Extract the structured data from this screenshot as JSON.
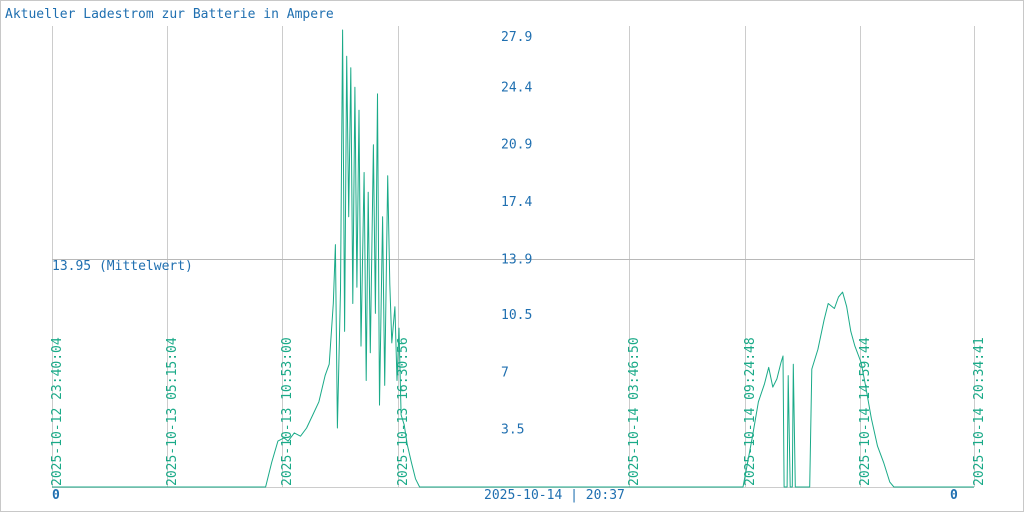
{
  "chart_data": {
    "type": "line",
    "title": "Aktueller Ladestrom zur Batterie in Ampere",
    "mean_label": "13.95 (Mittelwert)",
    "mean_value": 13.95,
    "ylim": [
      0,
      27.9
    ],
    "y_ticks": [
      {
        "value": 27.9,
        "label": "27.9"
      },
      {
        "value": 24.4,
        "label": "24.4"
      },
      {
        "value": 20.9,
        "label": "20.9"
      },
      {
        "value": 17.4,
        "label": "17.4"
      },
      {
        "value": 13.9,
        "label": "13.9"
      },
      {
        "value": 10.5,
        "label": "10.5"
      },
      {
        "value": 7,
        "label": "7"
      },
      {
        "value": 3.5,
        "label": "3.5"
      }
    ],
    "x_range_hours": [
      0,
      44.9
    ],
    "x_ticks": [
      {
        "hours": 0.0,
        "label": "2025-10-12 23:40:04"
      },
      {
        "hours": 5.58,
        "label": "2025-10-13 05:15:04"
      },
      {
        "hours": 11.21,
        "label": "2025-10-13 10:53:00"
      },
      {
        "hours": 16.85,
        "label": "2025-10-13 16:30:56"
      },
      {
        "hours": 28.11,
        "label": "2025-10-14 03:46:50"
      },
      {
        "hours": 33.75,
        "label": "2025-10-14 09:24:48"
      },
      {
        "hours": 39.33,
        "label": "2025-10-14 14:59:44"
      },
      {
        "hours": 44.91,
        "label": "2025-10-14 20:34:41"
      }
    ],
    "bottom_left_label": "0",
    "bottom_right_label": "0",
    "bottom_center_label": "2025-10-14 | 20:37",
    "colors": {
      "title": "#1f6fb0",
      "axis_text": "#1f6fb0",
      "line": "#1aaa88",
      "grid": "#cccccc"
    },
    "series": [
      {
        "values": [
          [
            0,
            0
          ],
          [
            10.4,
            0
          ],
          [
            10.7,
            1.5
          ],
          [
            11.0,
            2.8
          ],
          [
            11.3,
            3.0
          ],
          [
            11.5,
            2.8
          ],
          [
            11.8,
            3.3
          ],
          [
            12.1,
            3.1
          ],
          [
            12.4,
            3.6
          ],
          [
            12.7,
            4.4
          ],
          [
            13.0,
            5.2
          ],
          [
            13.3,
            6.8
          ],
          [
            13.5,
            7.5
          ],
          [
            13.7,
            11.2
          ],
          [
            13.8,
            14.8
          ],
          [
            13.9,
            3.6
          ],
          [
            14.05,
            12.0
          ],
          [
            14.15,
            27.9
          ],
          [
            14.25,
            9.5
          ],
          [
            14.35,
            26.3
          ],
          [
            14.45,
            16.5
          ],
          [
            14.55,
            25.6
          ],
          [
            14.65,
            11.2
          ],
          [
            14.75,
            24.4
          ],
          [
            14.85,
            12.2
          ],
          [
            14.95,
            23.0
          ],
          [
            15.05,
            8.6
          ],
          [
            15.2,
            19.2
          ],
          [
            15.3,
            6.5
          ],
          [
            15.4,
            18.0
          ],
          [
            15.5,
            8.2
          ],
          [
            15.65,
            20.9
          ],
          [
            15.75,
            10.6
          ],
          [
            15.85,
            24.0
          ],
          [
            15.95,
            5.0
          ],
          [
            16.1,
            16.5
          ],
          [
            16.2,
            6.2
          ],
          [
            16.35,
            19.0
          ],
          [
            16.45,
            12.4
          ],
          [
            16.55,
            8.8
          ],
          [
            16.7,
            11.0
          ],
          [
            16.8,
            6.5
          ],
          [
            16.9,
            9.7
          ],
          [
            17.0,
            4.4
          ],
          [
            17.15,
            3.8
          ],
          [
            17.3,
            2.6
          ],
          [
            17.5,
            1.5
          ],
          [
            17.7,
            0.5
          ],
          [
            17.9,
            0
          ],
          [
            33.65,
            0
          ],
          [
            33.8,
            1.0
          ],
          [
            34.1,
            3.0
          ],
          [
            34.4,
            5.2
          ],
          [
            34.7,
            6.3
          ],
          [
            34.9,
            7.3
          ],
          [
            35.1,
            6.1
          ],
          [
            35.3,
            6.6
          ],
          [
            35.5,
            7.6
          ],
          [
            35.6,
            8.0
          ],
          [
            35.65,
            0
          ],
          [
            35.8,
            0
          ],
          [
            35.85,
            6.8
          ],
          [
            35.95,
            0
          ],
          [
            36.05,
            0
          ],
          [
            36.1,
            7.5
          ],
          [
            36.2,
            0
          ],
          [
            36.9,
            0
          ],
          [
            37.0,
            7.2
          ],
          [
            37.3,
            8.4
          ],
          [
            37.6,
            10.2
          ],
          [
            37.8,
            11.2
          ],
          [
            38.1,
            10.9
          ],
          [
            38.3,
            11.6
          ],
          [
            38.5,
            11.9
          ],
          [
            38.7,
            11.0
          ],
          [
            38.9,
            9.5
          ],
          [
            39.1,
            8.6
          ],
          [
            39.4,
            7.6
          ],
          [
            39.6,
            6.3
          ],
          [
            39.9,
            4.2
          ],
          [
            40.2,
            2.5
          ],
          [
            40.5,
            1.5
          ],
          [
            40.8,
            0.3
          ],
          [
            41.0,
            0
          ],
          [
            44.9,
            0
          ]
        ]
      }
    ]
  }
}
